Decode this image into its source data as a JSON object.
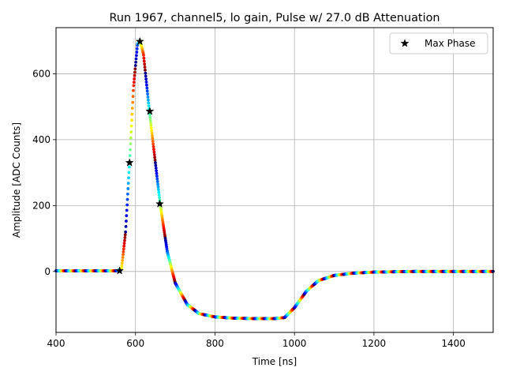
{
  "chart_data": {
    "type": "scatter",
    "title": "Run 1967, channel5, lo gain, Pulse w/ 27.0 dB Attenuation",
    "xlabel": "Time [ns]",
    "ylabel": "Amplitude [ADC Counts]",
    "xlim": [
      400,
      1500
    ],
    "ylim": [
      -185,
      740
    ],
    "x_ticks": [
      400,
      600,
      800,
      1000,
      1200,
      1400
    ],
    "y_ticks": [
      0,
      200,
      400,
      600
    ],
    "grid": true,
    "legend": {
      "placement": "top-right",
      "entries": [
        "Max Phase"
      ]
    },
    "colormap": "jet",
    "waveform": [
      [
        400,
        2
      ],
      [
        500,
        2
      ],
      [
        555,
        2
      ],
      [
        565,
        10
      ],
      [
        575,
        120
      ],
      [
        585,
        330
      ],
      [
        595,
        560
      ],
      [
        605,
        690
      ],
      [
        612,
        698
      ],
      [
        620,
        660
      ],
      [
        635,
        486
      ],
      [
        650,
        330
      ],
      [
        662,
        205
      ],
      [
        680,
        60
      ],
      [
        700,
        -35
      ],
      [
        730,
        -100
      ],
      [
        760,
        -128
      ],
      [
        800,
        -138
      ],
      [
        850,
        -142
      ],
      [
        900,
        -143
      ],
      [
        950,
        -143
      ],
      [
        975,
        -140
      ],
      [
        1000,
        -110
      ],
      [
        1030,
        -60
      ],
      [
        1060,
        -28
      ],
      [
        1100,
        -12
      ],
      [
        1150,
        -5
      ],
      [
        1200,
        -2
      ],
      [
        1300,
        0
      ],
      [
        1400,
        0
      ],
      [
        1500,
        0
      ]
    ],
    "series": [
      {
        "name": "Max Phase",
        "x": [
          560,
          585,
          611,
          636,
          661
        ],
        "y": [
          2,
          330,
          698,
          486,
          205
        ]
      }
    ]
  },
  "colors": {
    "grid": "#b0b0b0",
    "axes": "#000000",
    "marker": "#000000",
    "legend_border": "#cccccc"
  }
}
